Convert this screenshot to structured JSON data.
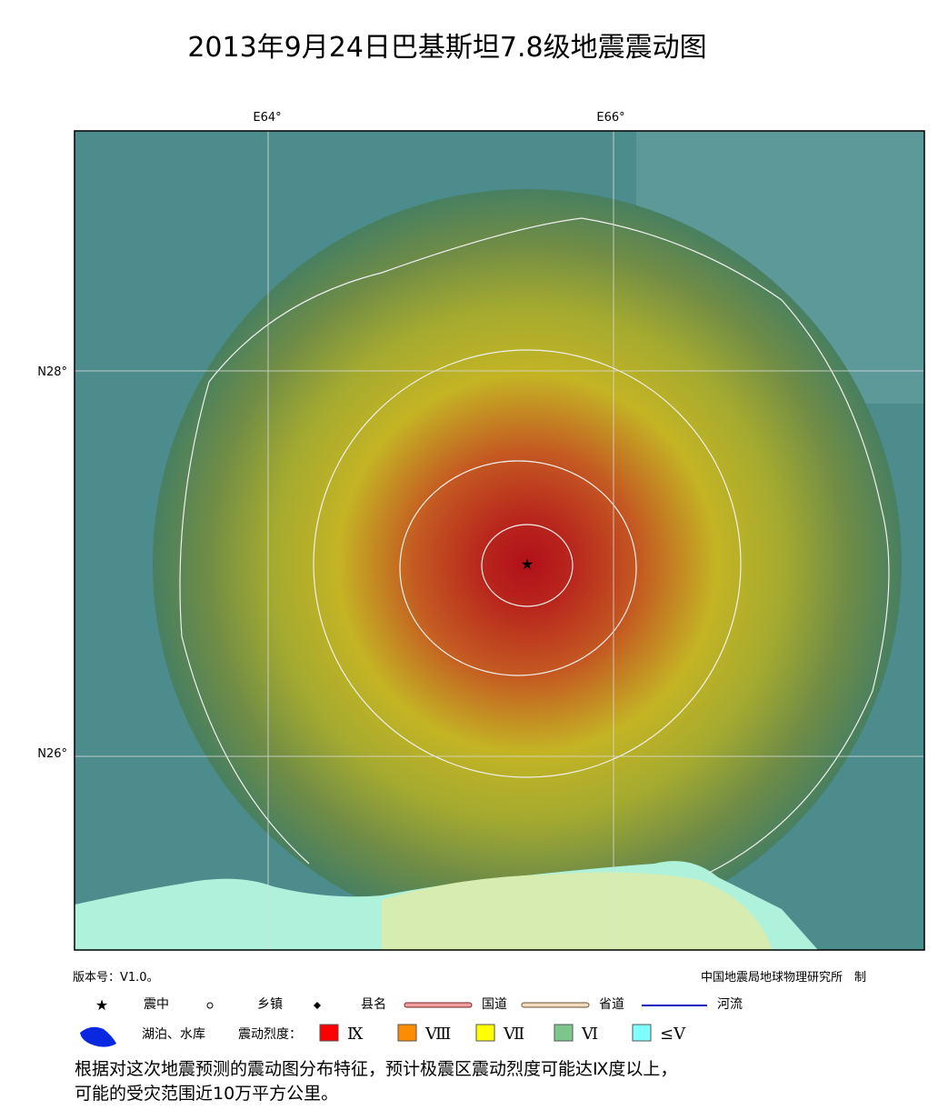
{
  "title": "2013年9月24日巴基斯坦7.8级地震震动图",
  "map": {
    "longitude_labels": [
      "E64°",
      "E66°"
    ],
    "latitude_labels": [
      "N28°",
      "N26°"
    ]
  },
  "footer": {
    "version": "版本号：V1.0。",
    "producer": "中国地震局地球物理研究所　制"
  },
  "legend": {
    "symbols": [
      "震中",
      "乡镇",
      "县名",
      "国道",
      "省道",
      "河流",
      "湖泊、水库"
    ],
    "intensity_title": "震动烈度：",
    "intensity": [
      {
        "label": "Ⅸ",
        "color": "#ff0000"
      },
      {
        "label": "Ⅷ",
        "color": "#ff8c00"
      },
      {
        "label": "Ⅶ",
        "color": "#ffff00"
      },
      {
        "label": "Ⅵ",
        "color": "#7cc68e"
      },
      {
        "label": "≤Ⅴ",
        "color": "#80ffff"
      }
    ]
  },
  "description": [
    "根据对这次地震预测的震动图分布特征，预计极震区震动烈度可能达Ⅸ度以上，",
    "可能的受灾范围近10万平方公里。"
  ]
}
